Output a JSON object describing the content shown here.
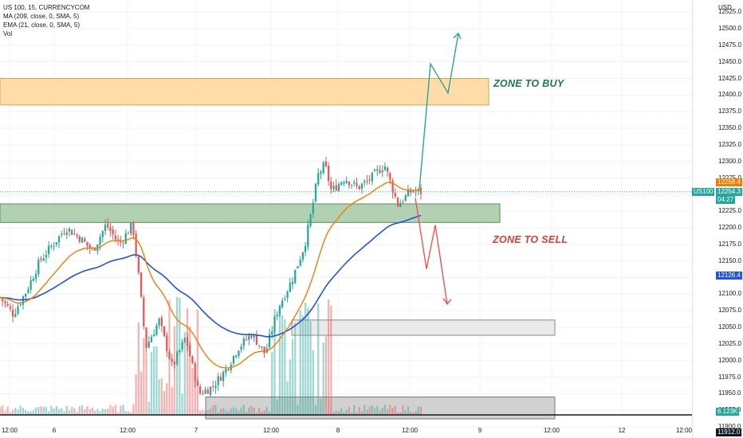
{
  "legend": {
    "symbol": "US 100, 15, CURRENCYCOM",
    "ma": "MA (209, close, 0, SMA, 5)",
    "ema": "EMA (21, close, 0, SMA, 5)",
    "vol": "Vol"
  },
  "annotations": {
    "buy_label": "ZONE TO BUY",
    "sell_label": "ZONE TO SELL"
  },
  "yaxis": {
    "currency": "USD",
    "ticks": [
      "12525.0",
      "12500.0",
      "12475.0",
      "12450.0",
      "12425.0",
      "12400.0",
      "12375.0",
      "12350.0",
      "12325.0",
      "12300.0",
      "12275.0",
      "12250.0",
      "12225.0",
      "12200.0",
      "12175.0",
      "12150.0",
      "12125.0",
      "12100.0",
      "12075.0",
      "12050.0",
      "12025.0",
      "12000.0",
      "11975.0",
      "11950.0",
      "11925.0",
      "11900.0"
    ]
  },
  "xaxis": {
    "ticks": [
      "12:00",
      "6",
      "12:00",
      "7",
      "12:00",
      "8",
      "12:00",
      "9",
      "12:00",
      "12",
      "12:00"
    ]
  },
  "price_tags": {
    "ema_value": "12258.4",
    "symbol_short": "US100",
    "last_price": "12254.3",
    "countdown": "04:27",
    "ma_value": "12126.4",
    "volume": "6.123K",
    "low_value": "11912.0"
  },
  "colors": {
    "up": "#26a69a",
    "down": "#ef5350",
    "ema": "#f57c00",
    "ma": "#1e53e5",
    "buy_zone": "#ffd699",
    "sell_zone": "#a5c8a5",
    "grey_zone": "#d9d9d9",
    "buy_text": "#1b7a4a",
    "sell_text": "#e53935",
    "up_arrow": "#26a69a",
    "down_arrow": "#ef5350"
  },
  "chart_data": {
    "type": "candlestick",
    "symbol": "US 100",
    "interval": "15",
    "ylim": [
      11900,
      12535
    ],
    "close_path": [
      {
        "x": 0,
        "y": 12095
      },
      {
        "x": 0.02,
        "y": 12070
      },
      {
        "x": 0.04,
        "y": 12105
      },
      {
        "x": 0.06,
        "y": 12150
      },
      {
        "x": 0.08,
        "y": 12175
      },
      {
        "x": 0.1,
        "y": 12200
      },
      {
        "x": 0.12,
        "y": 12185
      },
      {
        "x": 0.14,
        "y": 12165
      },
      {
        "x": 0.16,
        "y": 12205
      },
      {
        "x": 0.18,
        "y": 12175
      },
      {
        "x": 0.2,
        "y": 12205
      },
      {
        "x": 0.21,
        "y": 12120
      },
      {
        "x": 0.22,
        "y": 12020
      },
      {
        "x": 0.24,
        "y": 12060
      },
      {
        "x": 0.26,
        "y": 11990
      },
      {
        "x": 0.28,
        "y": 12035
      },
      {
        "x": 0.3,
        "y": 11950
      },
      {
        "x": 0.32,
        "y": 11960
      },
      {
        "x": 0.34,
        "y": 11985
      },
      {
        "x": 0.36,
        "y": 12020
      },
      {
        "x": 0.38,
        "y": 12040
      },
      {
        "x": 0.4,
        "y": 12010
      },
      {
        "x": 0.42,
        "y": 12080
      },
      {
        "x": 0.44,
        "y": 12120
      },
      {
        "x": 0.46,
        "y": 12175
      },
      {
        "x": 0.47,
        "y": 12225
      },
      {
        "x": 0.48,
        "y": 12280
      },
      {
        "x": 0.49,
        "y": 12295
      },
      {
        "x": 0.5,
        "y": 12255
      },
      {
        "x": 0.52,
        "y": 12275
      },
      {
        "x": 0.54,
        "y": 12260
      },
      {
        "x": 0.56,
        "y": 12275
      },
      {
        "x": 0.58,
        "y": 12295
      },
      {
        "x": 0.6,
        "y": 12235
      },
      {
        "x": 0.62,
        "y": 12255
      },
      {
        "x": 0.635,
        "y": 12254
      }
    ],
    "ema_value": 12258.4,
    "ma_value": 12126.4,
    "last_price": 12254.3,
    "zones": [
      {
        "name": "ZONE TO BUY",
        "from": 12385,
        "to": 12425
      },
      {
        "name": "ZONE TO SELL",
        "from": 12208,
        "to": 12236
      },
      {
        "name": "",
        "from": 12038,
        "to": 12061
      },
      {
        "name": "",
        "from": 11912,
        "to": 11945
      }
    ],
    "projections": [
      {
        "direction": "up",
        "path": [
          12258,
          12447,
          12403,
          12493
        ]
      },
      {
        "direction": "down",
        "path": [
          12245,
          12138,
          12204,
          12085
        ]
      }
    ],
    "xlabel": "",
    "ylabel": ""
  }
}
